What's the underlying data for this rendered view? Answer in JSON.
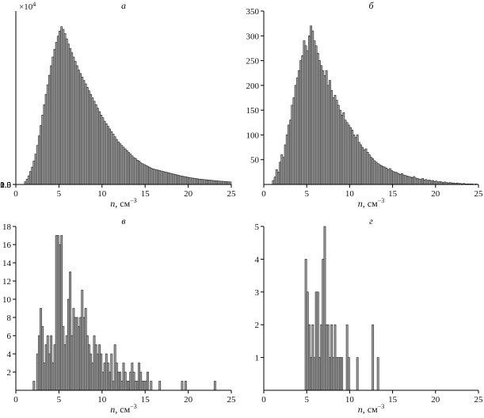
{
  "chart_data": [
    {
      "type": "bar",
      "panel_label": "а",
      "xlabel_var": "n",
      "xlabel_unit": ", см",
      "xlabel_exp": "−3",
      "xlim": [
        0,
        25
      ],
      "ylim": [
        0,
        20000
      ],
      "xticks": [
        0,
        5,
        10,
        15,
        20,
        25
      ],
      "yticks": [
        0.5,
        1.0,
        1.5,
        2.0
      ],
      "ytick_labels": [
        "0.5",
        "1.0",
        "1.5",
        "2.0"
      ],
      "y_multiplier_base": "×10",
      "y_multiplier_exp": "4",
      "bin_start": 1.0,
      "bin_width": 0.2,
      "values": [
        300,
        600,
        1000,
        1500,
        2000,
        2700,
        3500,
        4500,
        5600,
        6800,
        8000,
        9200,
        10400,
        11500,
        12600,
        13700,
        14700,
        15600,
        16400,
        17100,
        17700,
        18200,
        17900,
        17400,
        16800,
        16200,
        15700,
        15200,
        14700,
        14200,
        13700,
        13200,
        12800,
        12400,
        12000,
        11600,
        11200,
        10800,
        10400,
        10000,
        9600,
        9200,
        8800,
        8400,
        8000,
        7700,
        7300,
        7000,
        6700,
        6400,
        6100,
        5800,
        5500,
        5200,
        4900,
        4700,
        4500,
        4300,
        4100,
        3900,
        3700,
        3500,
        3300,
        3100,
        3000,
        2800,
        2700,
        2500,
        2400,
        2300,
        2200,
        2100,
        2000,
        1900,
        1800,
        1750,
        1700,
        1650,
        1600,
        1550,
        1500,
        1450,
        1400,
        1350,
        1300,
        1250,
        1200,
        1150,
        1100,
        1050,
        1000,
        960,
        920,
        880,
        840,
        800,
        770,
        740,
        710,
        680,
        650,
        620,
        600,
        580,
        560,
        540,
        520,
        500,
        480,
        460,
        440,
        420,
        400,
        385,
        370,
        355,
        340,
        325,
        310,
        295
      ]
    },
    {
      "type": "bar",
      "panel_label": "б",
      "xlabel_var": "n",
      "xlabel_unit": ", см",
      "xlabel_exp": "−3",
      "xlim": [
        0,
        25
      ],
      "ylim": [
        0,
        350
      ],
      "xticks": [
        0,
        5,
        10,
        15,
        20,
        25
      ],
      "yticks": [
        50,
        100,
        150,
        200,
        250,
        300,
        350
      ],
      "ytick_labels": [
        "50",
        "100",
        "150",
        "200",
        "250",
        "300",
        "350"
      ],
      "bin_start": 1.0,
      "bin_width": 0.2,
      "values": [
        8,
        15,
        30,
        25,
        45,
        60,
        55,
        80,
        100,
        120,
        130,
        160,
        175,
        200,
        215,
        230,
        250,
        260,
        290,
        280,
        270,
        300,
        320,
        310,
        290,
        280,
        265,
        250,
        240,
        230,
        220,
        230,
        200,
        210,
        190,
        175,
        180,
        170,
        160,
        150,
        140,
        145,
        130,
        125,
        120,
        115,
        110,
        100,
        95,
        100,
        85,
        80,
        75,
        70,
        72,
        65,
        60,
        55,
        52,
        48,
        45,
        42,
        40,
        38,
        36,
        35,
        33,
        30,
        32,
        28,
        26,
        25,
        24,
        22,
        20,
        22,
        19,
        18,
        17,
        16,
        15,
        14,
        16,
        13,
        12,
        11,
        10,
        12,
        9,
        10,
        8,
        9,
        7,
        8,
        6,
        7,
        5,
        6,
        5,
        4,
        5,
        4,
        3,
        4,
        3,
        3,
        2,
        3,
        2,
        2,
        1,
        2,
        1,
        1,
        1,
        1,
        1,
        0,
        1,
        0
      ]
    },
    {
      "type": "bar",
      "panel_label": "в",
      "xlabel_var": "n",
      "xlabel_unit": ", см",
      "xlabel_exp": "−3",
      "xlim": [
        0,
        25
      ],
      "ylim": [
        0,
        18
      ],
      "xticks": [
        0,
        5,
        10,
        15,
        20,
        25
      ],
      "yticks": [
        2,
        4,
        6,
        8,
        10,
        12,
        14,
        16,
        18
      ],
      "ytick_labels": [
        "2",
        "4",
        "6",
        "8",
        "10",
        "12",
        "14",
        "16",
        "18"
      ],
      "bin_start": 2.0,
      "bin_width": 0.2,
      "values": [
        1,
        0,
        4,
        6,
        9,
        7,
        3,
        5,
        6,
        4,
        6,
        3,
        5,
        17,
        17,
        16,
        17,
        7,
        5,
        6,
        10,
        13,
        6,
        9,
        8,
        8,
        7,
        8,
        11,
        8,
        9,
        6,
        5,
        4,
        3,
        6,
        5,
        4,
        5,
        4,
        2,
        3,
        4,
        3,
        2,
        4,
        1,
        5,
        3,
        2,
        2,
        1,
        3,
        2,
        1,
        1,
        2,
        3,
        2,
        1,
        1,
        3,
        2,
        1,
        1,
        1,
        2,
        0,
        1,
        0,
        0,
        0,
        0,
        1,
        0,
        0,
        0,
        0,
        0,
        0,
        0,
        0,
        0,
        0,
        0,
        0,
        1,
        0,
        1,
        0,
        0,
        0,
        0,
        0,
        0,
        0,
        0,
        0,
        0,
        0,
        0,
        0,
        0,
        0,
        0,
        1,
        0,
        0,
        0,
        0,
        0,
        0,
        0,
        0,
        0
      ]
    },
    {
      "type": "bar",
      "panel_label": "г",
      "xlabel_var": "n",
      "xlabel_unit": ", см",
      "xlabel_exp": "−3",
      "xlim": [
        0,
        25
      ],
      "ylim": [
        0,
        5
      ],
      "xticks": [
        0,
        5,
        10,
        15,
        20,
        25
      ],
      "yticks": [
        1,
        2,
        3,
        4,
        5
      ],
      "ytick_labels": [
        "1",
        "2",
        "3",
        "4",
        "5"
      ],
      "bin_start": 4.8,
      "bin_width": 0.2,
      "values": [
        4,
        3,
        2,
        1,
        2,
        1,
        3,
        3,
        1,
        2,
        4,
        5,
        2,
        2,
        1,
        2,
        1,
        2,
        1,
        1,
        1,
        1,
        0,
        0,
        2,
        1,
        0,
        0,
        0,
        0,
        1,
        0,
        0,
        0,
        0,
        0,
        0,
        0,
        0,
        2,
        0,
        0,
        1
      ]
    }
  ]
}
